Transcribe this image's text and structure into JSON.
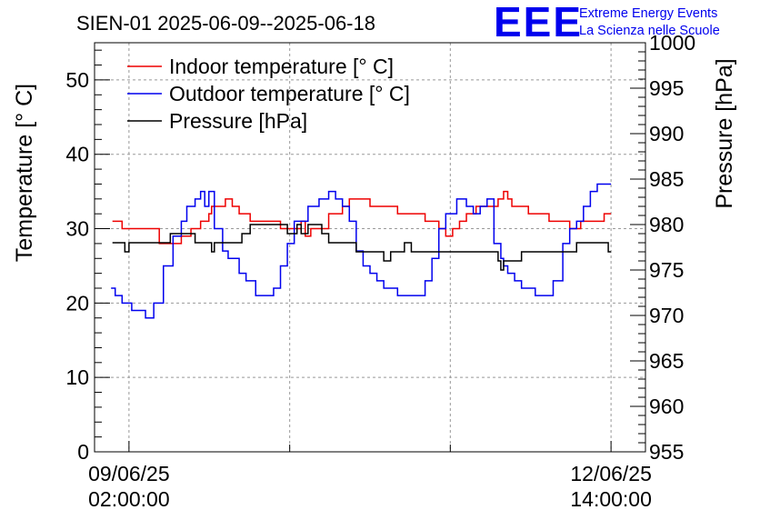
{
  "header": {
    "title": "SIEN-01 2025-06-09--2025-06-18",
    "logo_text": "EEE",
    "logo_line1": "Extreme Energy Events",
    "logo_line2": "La Scienza nelle Scuole"
  },
  "colors": {
    "indoor": "#ee0000",
    "outdoor": "#0000ee",
    "pressure": "#000000",
    "grid": "#999999",
    "logo": "#0000ee"
  },
  "chart_data": {
    "type": "line",
    "title": "SIEN-01 2025-06-09--2025-06-18",
    "xlabel": "",
    "ylabel": "Temperature [° C]",
    "y2label": "Pressure [hPa]",
    "xlim": [
      -0.25,
      3.75
    ],
    "ylim": [
      0,
      55
    ],
    "y2lim": [
      955,
      1000
    ],
    "grid": true,
    "legend_position": "top-left",
    "x_unit": "days since 09/06/25 02:00:00",
    "x_ticks": [
      {
        "x": 0,
        "date": "09/06/25",
        "time": "02:00:00"
      },
      {
        "x": 3.5,
        "date": "12/06/25",
        "time": "14:00:00"
      }
    ],
    "x_grid": [
      0,
      1.167,
      2.333,
      3.5
    ],
    "y_ticks": [
      "0",
      "10",
      "20",
      "30",
      "40",
      "50"
    ],
    "y2_ticks": [
      "955",
      "960",
      "965",
      "970",
      "975",
      "980",
      "985",
      "990",
      "995",
      "1000"
    ],
    "series": [
      {
        "name": "Indoor temperature [° C]",
        "axis": "left",
        "color": "#ee0000",
        "x": [
          -0.12,
          -0.08,
          -0.05,
          0,
          0.05,
          0.2,
          0.22,
          0.3,
          0.38,
          0.45,
          0.52,
          0.58,
          0.6,
          0.65,
          0.7,
          0.75,
          0.8,
          0.88,
          1.0,
          1.1,
          1.15,
          1.22,
          1.25,
          1.28,
          1.32,
          1.36,
          1.45,
          1.55,
          1.6,
          1.68,
          1.75,
          1.85,
          1.95,
          2.05,
          2.15,
          2.2,
          2.25,
          2.3,
          2.35,
          2.4,
          2.45,
          2.52,
          2.6,
          2.68,
          2.72,
          2.75,
          2.78,
          2.82,
          2.9,
          2.98,
          3.05,
          3.1,
          3.2,
          3.25,
          3.28,
          3.32,
          3.36,
          3.4,
          3.45,
          3.5
        ],
        "y": [
          31,
          31,
          30,
          30,
          30,
          30,
          28,
          28,
          29,
          30,
          31,
          32,
          33,
          33,
          34,
          33,
          32,
          31,
          31,
          30,
          30,
          30,
          31,
          29,
          30,
          30,
          32,
          33,
          34,
          34,
          33,
          33,
          32,
          32,
          31,
          31,
          30,
          29,
          30,
          31,
          32,
          33,
          33,
          34,
          35,
          34,
          33,
          33,
          32,
          32,
          31,
          31,
          30,
          30,
          31,
          31,
          31,
          31,
          32,
          32
        ]
      },
      {
        "name": "Outdoor temperature [° C]",
        "axis": "left",
        "color": "#0000ee",
        "x": [
          -0.13,
          -0.1,
          -0.05,
          0.02,
          0.08,
          0.12,
          0.18,
          0.25,
          0.32,
          0.38,
          0.42,
          0.48,
          0.52,
          0.55,
          0.58,
          0.62,
          0.68,
          0.72,
          0.8,
          0.85,
          0.92,
          1.0,
          1.05,
          1.1,
          1.15,
          1.2,
          1.3,
          1.38,
          1.45,
          1.5,
          1.55,
          1.6,
          1.65,
          1.7,
          1.75,
          1.8,
          1.85,
          1.95,
          2.05,
          2.15,
          2.2,
          2.25,
          2.3,
          2.38,
          2.45,
          2.5,
          2.55,
          2.6,
          2.65,
          2.7,
          2.72,
          2.75,
          2.8,
          2.85,
          2.9,
          2.95,
          3.02,
          3.08,
          3.15,
          3.2,
          3.25,
          3.3,
          3.35,
          3.4,
          3.45,
          3.5
        ],
        "y": [
          22,
          21,
          20,
          19,
          19,
          18,
          20,
          25,
          29,
          31,
          33,
          34,
          35,
          33,
          35,
          30,
          27,
          26,
          24,
          23,
          21,
          21,
          22,
          25,
          28,
          31,
          33,
          34,
          35,
          34,
          33,
          31,
          27,
          25,
          24,
          23,
          22,
          21,
          21,
          23,
          26,
          30,
          32,
          34,
          33,
          32,
          33,
          34,
          28,
          26,
          25,
          24,
          23,
          22,
          22,
          21,
          21,
          23,
          28,
          30,
          31,
          33,
          35,
          36,
          36,
          36
        ]
      },
      {
        "name": "Pressure [hPa]",
        "axis": "right",
        "color": "#000000",
        "x": [
          -0.12,
          -0.05,
          -0.03,
          0,
          0.25,
          0.3,
          0.45,
          0.48,
          0.55,
          0.6,
          0.62,
          0.75,
          0.82,
          0.85,
          0.88,
          1.0,
          1.1,
          1.15,
          1.18,
          1.22,
          1.25,
          1.3,
          1.35,
          1.4,
          1.45,
          1.55,
          1.65,
          1.8,
          1.85,
          1.9,
          1.95,
          2.0,
          2.05,
          2.1,
          2.15,
          2.3,
          2.35,
          2.45,
          2.6,
          2.68,
          2.7,
          2.72,
          2.75,
          2.8,
          2.85,
          3.1,
          3.2,
          3.25,
          3.3,
          3.45,
          3.48,
          3.5
        ],
        "y": [
          978,
          978,
          977,
          978,
          978,
          979,
          979,
          978,
          978,
          977,
          978,
          978,
          979,
          979,
          980,
          980,
          980,
          979,
          979,
          980,
          979,
          980,
          980,
          979,
          978,
          978,
          977,
          977,
          976,
          977,
          977,
          978,
          977,
          977,
          977,
          977,
          977,
          977,
          977,
          976,
          975,
          976,
          976,
          976,
          977,
          977,
          977,
          978,
          978,
          978,
          977,
          977
        ]
      }
    ]
  }
}
